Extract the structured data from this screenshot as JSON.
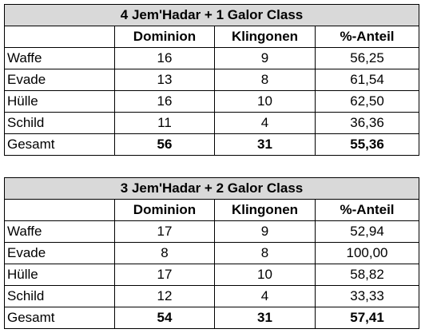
{
  "tables": [
    {
      "title": "4 Jem'Hadar + 1 Galor Class",
      "headers": [
        "",
        "Dominion",
        "Klingonen",
        "%-Anteil"
      ],
      "rows": [
        {
          "label": "Waffe",
          "dominion": "16",
          "klingonen": "9",
          "anteil": "56,25"
        },
        {
          "label": "Evade",
          "dominion": "13",
          "klingonen": "8",
          "anteil": "61,54"
        },
        {
          "label": "Hülle",
          "dominion": "16",
          "klingonen": "10",
          "anteil": "62,50"
        },
        {
          "label": "Schild",
          "dominion": "11",
          "klingonen": "4",
          "anteil": "36,36"
        }
      ],
      "total": {
        "label": "Gesamt",
        "dominion": "56",
        "klingonen": "31",
        "anteil": "55,36"
      }
    },
    {
      "title": "3 Jem'Hadar + 2 Galor Class",
      "headers": [
        "",
        "Dominion",
        "Klingonen",
        "%-Anteil"
      ],
      "rows": [
        {
          "label": "Waffe",
          "dominion": "17",
          "klingonen": "9",
          "anteil": "52,94"
        },
        {
          "label": "Evade",
          "dominion": "8",
          "klingonen": "8",
          "anteil": "100,00"
        },
        {
          "label": "Hülle",
          "dominion": "17",
          "klingonen": "10",
          "anteil": "58,82"
        },
        {
          "label": "Schild",
          "dominion": "12",
          "klingonen": "4",
          "anteil": "33,33"
        }
      ],
      "total": {
        "label": "Gesamt",
        "dominion": "54",
        "klingonen": "31",
        "anteil": "57,41"
      }
    }
  ],
  "colors": {
    "title_background": "#d9d9d9",
    "border": "#000000"
  }
}
